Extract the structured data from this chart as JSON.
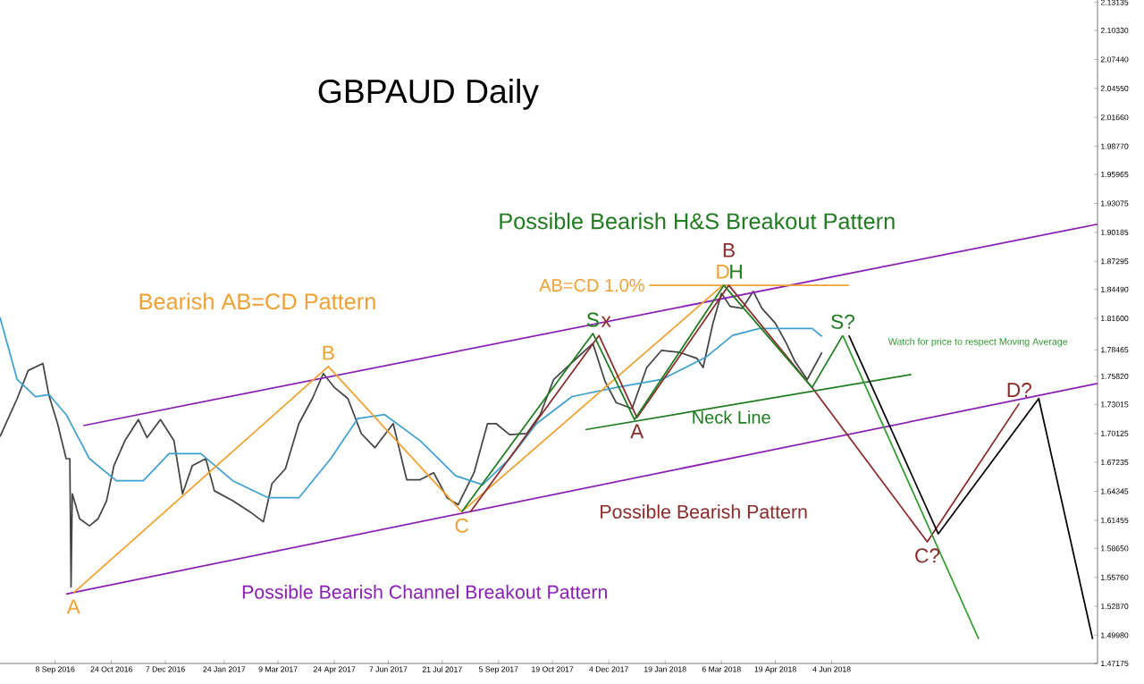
{
  "chart_data": {
    "type": "line",
    "title": "GBPAUD Daily",
    "xlim": [
      "2016-07-25",
      "2019-01-07"
    ],
    "ylim": [
      1.4717,
      2.1337
    ],
    "xticks": [
      {
        "value": "2016-09-08",
        "label": "8 Sep 2016"
      },
      {
        "value": "2016-10-24",
        "label": "24 Oct 2016"
      },
      {
        "value": "2016-12-07",
        "label": "7 Dec 2016"
      },
      {
        "value": "2017-01-24",
        "label": "24 Jan 2017"
      },
      {
        "value": "2017-03-09",
        "label": "9 Mar 2017"
      },
      {
        "value": "2017-04-24",
        "label": "24 Apr 2017"
      },
      {
        "value": "2017-06-07",
        "label": "7 Jun 2017"
      },
      {
        "value": "2017-07-21",
        "label": "21 Jul 2017"
      },
      {
        "value": "2017-09-05",
        "label": "5 Sep 2017"
      },
      {
        "value": "2017-10-19",
        "label": "19 Oct 2017"
      },
      {
        "value": "2017-12-04",
        "label": "4 Dec 2017"
      },
      {
        "value": "2018-01-19",
        "label": "19 Jan 2018"
      },
      {
        "value": "2018-03-06",
        "label": "6 Mar 2018"
      },
      {
        "value": "2018-04-19",
        "label": "19 Apr 2018"
      },
      {
        "value": "2018-06-04",
        "label": "4 Jun 2018"
      }
    ],
    "yticks": [
      2.13135,
      {
        "value": 2.1033,
        "label": "2.10330"
      },
      {
        "value": 2.0744,
        "label": "2.07440"
      },
      {
        "value": 2.0455,
        "label": "2.04550"
      },
      {
        "value": 2.0166,
        "label": "2.01660"
      },
      {
        "value": 1.9877,
        "label": "1.98770"
      },
      1.95965,
      1.93075,
      1.90185,
      1.87295,
      {
        "value": 1.8449,
        "label": "1.84490"
      },
      {
        "value": 1.816,
        "label": "1.81600"
      },
      1.78465,
      {
        "value": 1.7582,
        "label": "1.75820"
      },
      1.73015,
      1.70125,
      1.67235,
      1.64345,
      1.61455,
      {
        "value": 1.5865,
        "label": "1.58650"
      },
      {
        "value": 1.5576,
        "label": "1.55760"
      },
      {
        "value": 1.5287,
        "label": "1.52870"
      },
      {
        "value": 1.4998,
        "label": "1.49980"
      },
      1.47175
    ],
    "marker": "none",
    "line_style": "solid",
    "series": [
      {
        "color": "#444444",
        "x": [
          "2016-07-25",
          "2016-08-08",
          "2016-08-17",
          "2016-08-29",
          "2016-09-03",
          "2016-09-10",
          "2016-09-17",
          "2016-09-20",
          "2016-09-21",
          "2016-09-22",
          "2016-09-28",
          "2016-10-06",
          "2016-10-13",
          "2016-10-20",
          "2016-10-26",
          "2016-11-04",
          "2016-11-15",
          "2016-11-22",
          "2016-12-03",
          "2016-12-14",
          "2016-12-21",
          "2016-12-29",
          "2017-01-09",
          "2017-01-16",
          "2017-01-31",
          "2017-02-14",
          "2017-02-25",
          "2017-03-04",
          "2017-03-15",
          "2017-03-26",
          "2017-04-06",
          "2017-04-15",
          "2017-04-24",
          "2017-05-05",
          "2017-05-16",
          "2017-05-27",
          "2017-06-11",
          "2017-06-22",
          "2017-07-03",
          "2017-07-14",
          "2017-07-25",
          "2017-08-03",
          "2017-08-16",
          "2017-08-27",
          "2017-09-03",
          "2017-09-14",
          "2017-09-28",
          "2017-10-09",
          "2017-10-20",
          "2017-11-13",
          "2017-11-21",
          "2017-12-01",
          "2017-12-10",
          "2017-12-23",
          "2018-01-04",
          "2018-01-16",
          "2018-01-31",
          "2018-02-14",
          "2018-02-19",
          "2018-02-27",
          "2018-03-06",
          "2018-03-13",
          "2018-03-23",
          "2018-04-01",
          "2018-04-08",
          "2018-04-19",
          "2018-04-28",
          "2018-05-05",
          "2018-05-15",
          "2018-05-27"
        ],
        "values": [
          1.698,
          1.736,
          1.764,
          1.771,
          1.739,
          1.711,
          1.676,
          1.676,
          1.548,
          1.641,
          1.616,
          1.609,
          1.616,
          1.634,
          1.669,
          1.694,
          1.715,
          1.697,
          1.715,
          1.694,
          1.641,
          1.669,
          1.676,
          1.644,
          1.634,
          1.623,
          1.613,
          1.651,
          1.666,
          1.711,
          1.736,
          1.761,
          1.747,
          1.736,
          1.701,
          1.687,
          1.711,
          1.655,
          1.655,
          1.662,
          1.637,
          1.63,
          1.662,
          1.711,
          1.711,
          1.7,
          1.701,
          1.72,
          1.755,
          1.782,
          1.791,
          1.753,
          1.732,
          1.726,
          1.767,
          1.784,
          1.782,
          1.776,
          1.767,
          1.811,
          1.841,
          1.828,
          1.826,
          1.843,
          1.826,
          1.811,
          1.791,
          1.773,
          1.755,
          1.782
        ]
      },
      {
        "color": "#3fa0d0",
        "x": [
          "2016-07-25",
          "2016-08-08",
          "2016-08-23",
          "2016-09-03",
          "2016-09-17",
          "2016-10-06",
          "2016-10-28",
          "2016-11-19",
          "2016-12-10",
          "2017-01-05",
          "2017-01-31",
          "2017-03-01",
          "2017-03-26",
          "2017-04-21",
          "2017-05-13",
          "2017-06-04",
          "2017-07-03",
          "2017-08-01",
          "2017-08-23",
          "2017-09-14",
          "2017-10-06",
          "2017-11-04",
          "2017-12-10",
          "2018-01-16",
          "2018-02-21",
          "2018-03-15",
          "2018-04-06",
          "2018-04-28",
          "2018-05-19",
          "2018-05-27"
        ],
        "values": [
          1.817,
          1.755,
          1.738,
          1.74,
          1.72,
          1.676,
          1.654,
          1.654,
          1.681,
          1.681,
          1.654,
          1.637,
          1.637,
          1.676,
          1.716,
          1.72,
          1.694,
          1.659,
          1.65,
          1.676,
          1.711,
          1.738,
          1.747,
          1.755,
          1.777,
          1.799,
          1.806,
          1.806,
          1.806,
          1.798
        ]
      },
      {
        "color": "#8a1fb5",
        "x": [
          "2016-10-01",
          "2019-01-07"
        ],
        "values": [
          1.709,
          1.91
        ]
      },
      {
        "color": "#8a1fb5",
        "x": [
          "2016-09-17",
          "2019-01-07"
        ],
        "values": [
          1.541,
          1.751
        ]
      },
      {
        "color": "#f0a030",
        "x": [
          "2016-09-23",
          "2017-04-19",
          "2017-08-06",
          "2018-03-07"
        ],
        "values": [
          1.542,
          1.768,
          1.623,
          1.849
        ]
      },
      {
        "color": "#f0a030",
        "x": [
          "2018-01-06",
          "2018-06-18"
        ],
        "values": [
          1.849,
          1.849
        ]
      },
      {
        "color": "#8b2a2a",
        "x": [
          "2017-08-13",
          "2017-11-26",
          "2017-12-27",
          "2018-03-12",
          "2018-05-19",
          "2018-08-21",
          "2018-11-04"
        ],
        "values": [
          1.623,
          1.799,
          1.717,
          1.849,
          1.747,
          1.593,
          1.731
        ]
      },
      {
        "color": "#1e7b1e",
        "x": [
          "2017-08-06",
          "2017-11-21",
          "2017-12-25",
          "2018-03-08",
          "2018-05-19",
          "2018-06-13"
        ],
        "values": [
          1.623,
          1.801,
          1.715,
          1.849,
          1.747,
          1.799
        ]
      },
      {
        "color": "#1e7b1e",
        "x": [
          "2017-11-15",
          "2018-08-08"
        ],
        "values": [
          1.705,
          1.76
        ]
      },
      {
        "color": "#000000",
        "x": [
          "2018-06-18",
          "2018-08-30",
          "2018-11-20",
          "2019-01-03"
        ],
        "values": [
          1.799,
          1.601,
          1.736,
          1.496
        ]
      },
      {
        "color": "#2e9b2e",
        "x": [
          "2018-06-13",
          "2018-10-02"
        ],
        "values": [
          1.799,
          1.496
        ]
      }
    ],
    "annotations": [
      "Possible Bearish H&S Breakout Pattern",
      "Bearish AB=CD Pattern",
      "Possible Bearish Pattern",
      "Possible Bearish Channel Breakout Pattern",
      "Watch for price to respect Moving Average",
      {
        "text": "Neck Line",
        "x": "2018-03-14",
        "y": 1.73
      },
      {
        "text": "AB=CD 1.0%",
        "x": "2018-01-06",
        "y": 1.849
      },
      {
        "text": "A",
        "x": "2016-09-23",
        "y": 1.542
      },
      {
        "text": "B",
        "x": "2017-04-19",
        "y": 1.768
      },
      {
        "text": "C",
        "x": "2017-08-06",
        "y": 1.623
      },
      {
        "text": "D",
        "x": "2018-03-07",
        "y": 1.849
      },
      {
        "text": "H",
        "x": "2018-03-08",
        "y": 1.849
      },
      {
        "text": "S",
        "x": "2017-11-21",
        "y": 1.801
      },
      {
        "text": "x",
        "x": "2017-11-26",
        "y": 1.799
      },
      {
        "text": "B",
        "x": "2018-03-12",
        "y": 1.849
      },
      {
        "text": "A",
        "x": "2017-12-27",
        "y": 1.717
      },
      {
        "text": "S?",
        "x": "2018-06-13",
        "y": 1.799
      },
      {
        "text": "C?",
        "x": "2018-08-21",
        "y": 1.593
      },
      {
        "text": "D?",
        "x": "2018-11-04",
        "y": 1.731
      }
    ]
  }
}
